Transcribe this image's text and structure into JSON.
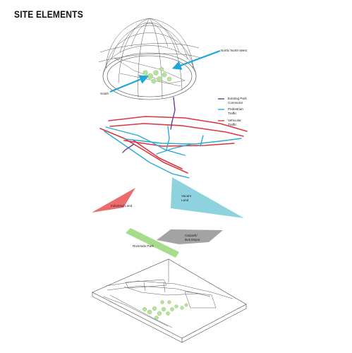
{
  "title": "SITE ELEMENTS",
  "sun_path": {
    "labels": {
      "north": "North/ North-West",
      "south": "South"
    },
    "arrow_color": "#1fa6d9"
  },
  "legend": [
    {
      "line1": "Existing Park",
      "line2": "Connector",
      "color": "#6a3a96"
    },
    {
      "line1": "Pedestrian",
      "line2": "Traffic",
      "color": "#2aa9d6"
    },
    {
      "line1": "Vehicular",
      "line2": "Traffic",
      "color": "#d9373f"
    }
  ],
  "land": {
    "industrial": {
      "label": "Industrial Land",
      "color": "#ee6b6d"
    },
    "vacant": {
      "line1": "Vacant",
      "line2": "Land",
      "color": "#8fd2df"
    }
  },
  "parking": {
    "riverside": {
      "label": "Riverside Park",
      "color": "#a6dd8a"
    },
    "carpark": {
      "line1": "Carpark/",
      "line2": "Bus Depot",
      "color": "#a3a3a3"
    }
  }
}
